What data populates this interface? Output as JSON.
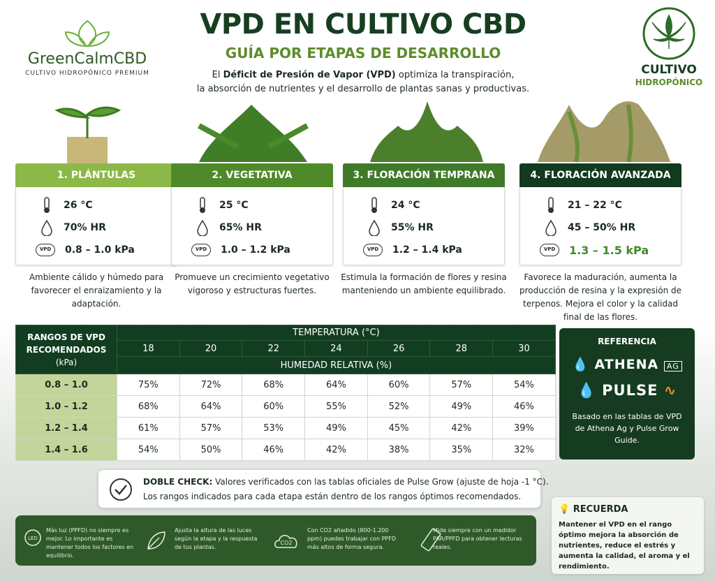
{
  "brand": {
    "name": "GreenCalmCBD",
    "tagline": "CULTIVO HIDROPÓNICO PREMIUM"
  },
  "header": {
    "title": "VPD EN CULTIVO CBD",
    "subtitle": "GUÍA POR ETAPAS DE DESARROLLO",
    "intro": [
      "El ",
      "Déficit de Presión de Vapor (VPD)",
      " optimiza la transpiración,",
      "la absorción de nutrientes y el desarrollo de plantas sanas y productivas."
    ]
  },
  "badge": {
    "line1": "CULTIVO",
    "line2": "HIDROPÓNICO"
  },
  "icon_labels": {
    "vpd": "VPD",
    "led": "LED",
    "co2": "CO2"
  },
  "stages": [
    {
      "title": "1. PLÁNTULAS",
      "temperature": "26 °C",
      "humidity": "70% HR",
      "vpd": "0.8 – 1.0 kPa",
      "description": "Ambiente cálido y húmedo para favorecer el enraizamiento y la adaptación."
    },
    {
      "title": "2. VEGETATIVA",
      "temperature": "25 °C",
      "humidity": "65% HR",
      "vpd": "1.0 – 1.2 kPa",
      "description": "Promueve un crecimiento vegetativo vigoroso y estructuras fuertes."
    },
    {
      "title": "3. FLORACIÓN TEMPRANA",
      "temperature": "24 °C",
      "humidity": "55% HR",
      "vpd": "1.2 – 1.4 kPa",
      "description": "Estimula la formación de flores y resina manteniendo un ambiente equilibrado."
    },
    {
      "title": "4. FLORACIÓN AVANZADA",
      "temperature": "21 – 22 °C",
      "humidity": "45 – 50% HR",
      "vpd": "1.3 – 1.5 kPa",
      "description": "Favorece la maduración, aumenta la producción de resina y la expresión de terpenos. Mejora el color y la calidad final de las flores."
    }
  ],
  "table": {
    "corner": [
      "RANGOS DE VPD",
      "RECOMENDADOS",
      "(kPa)"
    ],
    "temperature_header": "TEMPERATURA (°C)",
    "temperatures": [
      "18",
      "20",
      "22",
      "24",
      "26",
      "28",
      "30"
    ],
    "humidity_header": "HUMEDAD RELATIVA (%)",
    "rows": [
      {
        "label": "0.8 – 1.0",
        "values": [
          "75%",
          "72%",
          "68%",
          "64%",
          "60%",
          "57%",
          "54%"
        ]
      },
      {
        "label": "1.0 – 1.2",
        "values": [
          "68%",
          "64%",
          "60%",
          "55%",
          "52%",
          "49%",
          "46%"
        ]
      },
      {
        "label": "1.2 – 1.4",
        "values": [
          "61%",
          "57%",
          "53%",
          "49%",
          "45%",
          "42%",
          "39%"
        ]
      },
      {
        "label": "1.4 – 1.6",
        "values": [
          "54%",
          "50%",
          "46%",
          "42%",
          "38%",
          "35%",
          "32%"
        ]
      }
    ]
  },
  "reference": {
    "title": "REFERENCIA",
    "athena": "ATHENA",
    "athena_tag": "AG",
    "pulse": "PULSE",
    "note": "Basado en las tablas de VPD de Athena Ag y Pulse Grow Guide."
  },
  "check": {
    "label": "DOBLE CHECK:",
    "text": "Valores verificados con las tablas oficiales de Pulse Grow (ajuste de hoja -1 °C).",
    "line2": "Los rangos indicados para cada etapa están dentro de los rangos óptimos recomendados."
  },
  "tips": [
    "Más luz (PPFD) no siempre es mejor. Lo importante es mantener todos los factores en equilibrio.",
    "Ajusta la altura de las luces según la etapa y la respuesta de tus plantas.",
    "Con CO2 añadido (800-1.200 ppm) puedes trabajar con PPFD más altos de forma segura.",
    "Mide siempre con un medidor PAR/PPFD para obtener lecturas reales."
  ],
  "reminder": {
    "title": "RECUERDA",
    "text": "Mantener el VPD en el rango óptimo mejora la absorción de nutrientes, reduce el estrés y aumenta la calidad, el aroma y el rendimiento."
  }
}
